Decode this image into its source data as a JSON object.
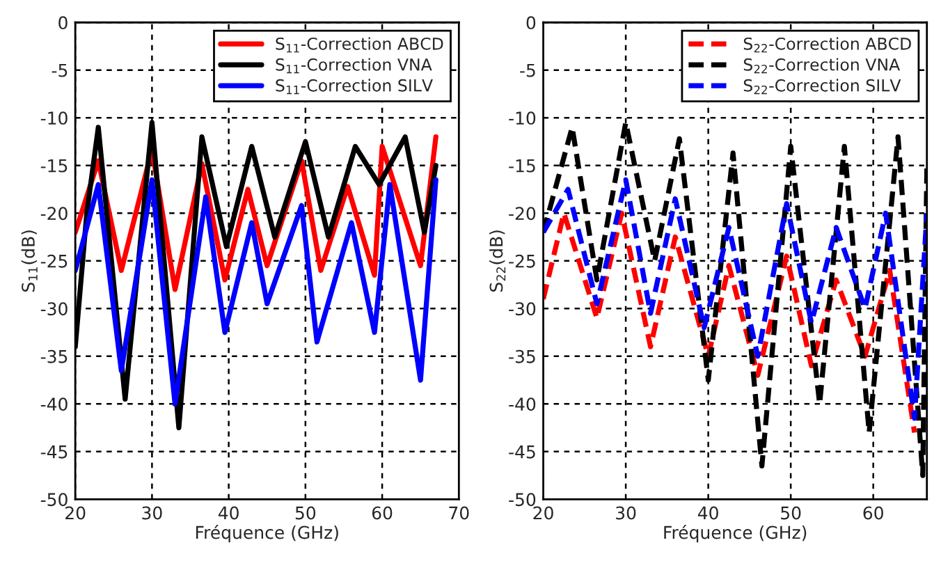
{
  "chart_data": [
    {
      "type": "line",
      "xlabel": "Fréquence (GHz)",
      "ylabel": "S$_{11}$(dB)",
      "xlim": [
        20,
        70
      ],
      "xticks": [
        20,
        30,
        40,
        50,
        60,
        70
      ],
      "ylim": [
        -50,
        0
      ],
      "yticks": [
        -50,
        -45,
        -40,
        -35,
        -30,
        -25,
        -20,
        -15,
        -10,
        -5,
        0
      ],
      "grid": true,
      "legend": "top right",
      "line_style": "solid",
      "marker": "none",
      "series": [
        {
          "name": "S$_{11}$-Correction ABCD",
          "color": "#ff0000",
          "x": [
            20,
            23,
            26,
            30,
            33,
            36.5,
            39.5,
            42.5,
            45,
            49.5,
            52,
            55.5,
            59,
            60,
            65,
            67
          ],
          "values": [
            -22,
            -14.5,
            -26,
            -13.3,
            -28,
            -14.8,
            -27,
            -17.5,
            -25.5,
            -14.5,
            -26,
            -17.2,
            -26.5,
            -13,
            -25.5,
            -12
          ]
        },
        {
          "name": "S$_{11}$-Correction VNA",
          "color": "#000000",
          "x": [
            20,
            21.5,
            23,
            26.5,
            30,
            33.5,
            36.5,
            39.7,
            43,
            46,
            50,
            53,
            56.5,
            59.6,
            63,
            65.5,
            67
          ],
          "values": [
            -34,
            -20,
            -11,
            -39.5,
            -10.5,
            -42.5,
            -12,
            -23.5,
            -13,
            -22.5,
            -12.5,
            -22.5,
            -13,
            -17,
            -12,
            -22,
            -15
          ]
        },
        {
          "name": "S$_{11}$-Correction SILV",
          "color": "#0000ff",
          "x": [
            20,
            23,
            26,
            30,
            33,
            37,
            39.5,
            43,
            45,
            49.5,
            51.5,
            56,
            59,
            61,
            65,
            67
          ],
          "values": [
            -26,
            -17,
            -36.5,
            -16.5,
            -40,
            -18.3,
            -32.5,
            -21,
            -29.5,
            -19.2,
            -33.5,
            -21,
            -32.5,
            -17,
            -37.5,
            -16.5
          ]
        }
      ]
    },
    {
      "type": "line",
      "xlabel": "Fréquence (GHz)",
      "ylabel": "S$_{22}$(dB)",
      "xlim": [
        20,
        66.5
      ],
      "xticks": [
        20,
        30,
        40,
        50,
        60
      ],
      "ylim": [
        -50,
        0
      ],
      "yticks": [
        -50,
        -45,
        -40,
        -35,
        -30,
        -25,
        -20,
        -15,
        -10,
        -5,
        0
      ],
      "grid": true,
      "legend": "top right",
      "line_style": "dashed",
      "marker": "none",
      "series": [
        {
          "name": "S$_{22}$-Correction ABCD",
          "color": "#ff0000",
          "x": [
            20,
            22.5,
            26.5,
            29.5,
            33,
            36,
            40,
            42.5,
            46,
            49.5,
            52.5,
            55.5,
            59,
            62,
            65
          ],
          "values": [
            -29,
            -20,
            -31,
            -20,
            -34,
            -22.5,
            -35,
            -25.5,
            -37,
            -24.5,
            -36,
            -27,
            -35,
            -26,
            -43
          ]
        },
        {
          "name": "S$_{22}$-Correction VNA",
          "color": "#000000",
          "x": [
            20,
            23.5,
            26.5,
            30,
            33.5,
            36.5,
            40,
            43,
            46.5,
            50,
            53.5,
            56.5,
            59.5,
            63,
            66,
            66.5
          ],
          "values": [
            -22,
            -11,
            -27,
            -10.5,
            -25,
            -12.2,
            -37.5,
            -13.7,
            -46.5,
            -13,
            -40,
            -13,
            -43,
            -12,
            -47.5,
            -15
          ]
        },
        {
          "name": "S$_{22}$-Correction SILV",
          "color": "#0000ff",
          "x": [
            20,
            23,
            26.5,
            30,
            33,
            36,
            39.5,
            42.5,
            46,
            49.5,
            52.5,
            55.5,
            59,
            61.5,
            65,
            66.5
          ],
          "values": [
            -22,
            -17.5,
            -29.5,
            -16.5,
            -30.5,
            -18.5,
            -32,
            -21.5,
            -35,
            -19,
            -31.5,
            -21.5,
            -30,
            -20,
            -41.5,
            -20
          ]
        }
      ]
    }
  ]
}
